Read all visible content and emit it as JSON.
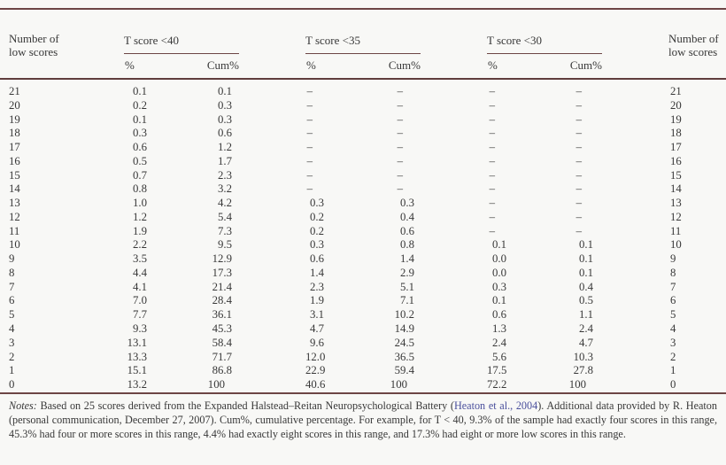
{
  "table": {
    "header": {
      "left_label_line1": "Number of",
      "left_label_line2": "low scores",
      "right_label_line1": "Number of",
      "right_label_line2": "low scores",
      "groups": [
        "T score <40",
        "T score <35",
        "T score <30"
      ],
      "sub": {
        "pct": "%",
        "cum": "Cum%"
      }
    },
    "rows": [
      [
        "21",
        "0.1",
        "0.1",
        "–",
        "–",
        "–",
        "–",
        "21"
      ],
      [
        "20",
        "0.2",
        "0.3",
        "–",
        "–",
        "–",
        "–",
        "20"
      ],
      [
        "19",
        "0.1",
        "0.3",
        "–",
        "–",
        "–",
        "–",
        "19"
      ],
      [
        "18",
        "0.3",
        "0.6",
        "–",
        "–",
        "–",
        "–",
        "18"
      ],
      [
        "17",
        "0.6",
        "1.2",
        "–",
        "–",
        "–",
        "–",
        "17"
      ],
      [
        "16",
        "0.5",
        "1.7",
        "–",
        "–",
        "–",
        "–",
        "16"
      ],
      [
        "15",
        "0.7",
        "2.3",
        "–",
        "–",
        "–",
        "–",
        "15"
      ],
      [
        "14",
        "0.8",
        "3.2",
        "–",
        "–",
        "–",
        "–",
        "14"
      ],
      [
        "13",
        "1.0",
        "4.2",
        "0.3",
        "0.3",
        "–",
        "–",
        "13"
      ],
      [
        "12",
        "1.2",
        "5.4",
        "0.2",
        "0.4",
        "–",
        "–",
        "12"
      ],
      [
        "11",
        "1.9",
        "7.3",
        "0.2",
        "0.6",
        "–",
        "–",
        "11"
      ],
      [
        "10",
        "2.2",
        "9.5",
        "0.3",
        "0.8",
        "0.1",
        "0.1",
        "10"
      ],
      [
        "9",
        "3.5",
        "12.9",
        "0.6",
        "1.4",
        "0.0",
        "0.1",
        "9"
      ],
      [
        "8",
        "4.4",
        "17.3",
        "1.4",
        "2.9",
        "0.0",
        "0.1",
        "8"
      ],
      [
        "7",
        "4.1",
        "21.4",
        "2.3",
        "5.1",
        "0.3",
        "0.4",
        "7"
      ],
      [
        "6",
        "7.0",
        "28.4",
        "1.9",
        "7.1",
        "0.1",
        "0.5",
        "6"
      ],
      [
        "5",
        "7.7",
        "36.1",
        "3.1",
        "10.2",
        "0.6",
        "1.1",
        "5"
      ],
      [
        "4",
        "9.3",
        "45.3",
        "4.7",
        "14.9",
        "1.3",
        "2.4",
        "4"
      ],
      [
        "3",
        "13.1",
        "58.4",
        "9.6",
        "24.5",
        "2.4",
        "4.7",
        "3"
      ],
      [
        "2",
        "13.3",
        "71.7",
        "12.0",
        "36.5",
        "5.6",
        "10.3",
        "2"
      ],
      [
        "1",
        "15.1",
        "86.8",
        "22.9",
        "59.4",
        "17.5",
        "27.8",
        "1"
      ],
      [
        "0",
        "13.2",
        "100",
        "40.6",
        "100",
        "72.2",
        "100",
        "0"
      ]
    ]
  },
  "notes": {
    "label": "Notes:",
    "before_link": " Based on 25 scores derived from the Expanded Halstead–Reitan Neuropsychological Battery (",
    "link_text": "Heaton et al., 2004",
    "after_link": "). Additional data provided by R. Heaton (personal communication, December 27, 2007). Cum%, cumulative percentage. For example, for T < 40, 9.3% of the sample had exactly four scores in this range, 45.3% had four or more scores in this range, 4.4% had exactly eight scores in this range, and 17.3% had eight or more low scores in this range."
  },
  "colors": {
    "rule": "#6d4545",
    "link": "#4a4f9c",
    "text": "#383838",
    "background": "#f8f8f6"
  }
}
